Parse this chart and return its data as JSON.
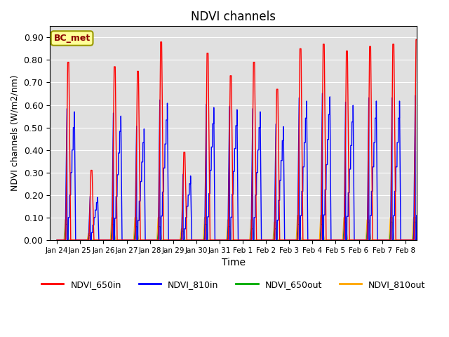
{
  "title": "NDVI channels",
  "xlabel": "Time",
  "ylabel": "NDVI channels (W/m2/nm)",
  "ylim": [
    0.0,
    0.95
  ],
  "yticks": [
    0.0,
    0.1,
    0.2,
    0.3,
    0.4,
    0.5,
    0.6,
    0.7,
    0.8,
    0.9
  ],
  "annotation": "BC_met",
  "colors": {
    "NDVI_650in": "#FF0000",
    "NDVI_810in": "#0000FF",
    "NDVI_650out": "#00AA00",
    "NDVI_810out": "#FFA500"
  },
  "tick_labels": [
    "Jan 24",
    "Jan 25",
    "Jan 26",
    "Jan 27",
    "Jan 28",
    "Jan 29",
    "Jan 30",
    "Jan 31",
    "Feb 1",
    "Feb 2",
    "Feb 3",
    "Feb 4",
    "Feb 5",
    "Feb 6",
    "Feb 7",
    "Feb 8"
  ],
  "bg_color": "#E0E0E0",
  "grid_color": "#FFFFFF",
  "peaks_650in": [
    0.79,
    0.31,
    0.77,
    0.75,
    0.88,
    0.39,
    0.83,
    0.73,
    0.79,
    0.67,
    0.85,
    0.87,
    0.84,
    0.86,
    0.87,
    0.89
  ],
  "peaks_810in": [
    0.6,
    0.2,
    0.58,
    0.52,
    0.64,
    0.3,
    0.62,
    0.61,
    0.6,
    0.53,
    0.65,
    0.67,
    0.63,
    0.65,
    0.65,
    0.66
  ],
  "peaks_650out": [
    0.07,
    0.02,
    0.07,
    0.06,
    0.06,
    0.04,
    0.07,
    0.06,
    0.05,
    0.05,
    0.07,
    0.07,
    0.08,
    0.08,
    0.08,
    0.08
  ],
  "peaks_810out": [
    0.09,
    0.03,
    0.1,
    0.1,
    0.1,
    0.05,
    0.1,
    0.09,
    0.09,
    0.08,
    0.11,
    0.11,
    0.1,
    0.09,
    0.1,
    0.1
  ],
  "figsize": [
    6.4,
    4.8
  ],
  "dpi": 100
}
